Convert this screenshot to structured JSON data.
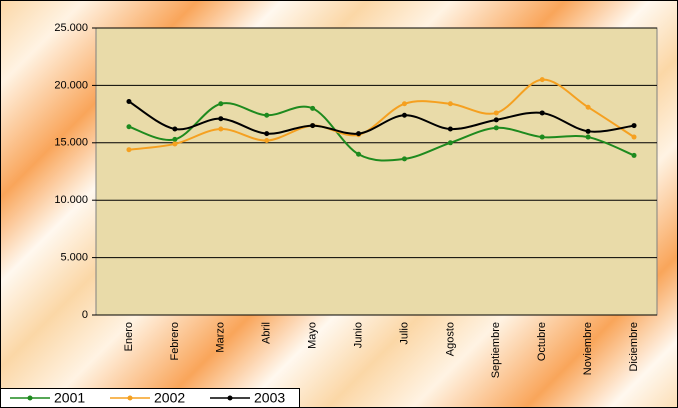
{
  "chart_data": {
    "type": "line",
    "categories": [
      "Enero",
      "Febrero",
      "Marzo",
      "Abril",
      "Mayo",
      "Junio",
      "Julio",
      "Agosto",
      "Septiembre",
      "Octubre",
      "Noviembre",
      "Diciembre"
    ],
    "series": [
      {
        "name": "2001",
        "color": "#1e8a1e",
        "values": [
          16400,
          15300,
          18400,
          17400,
          18000,
          14000,
          13600,
          15000,
          16300,
          15500,
          15500,
          13900
        ]
      },
      {
        "name": "2002",
        "color": "#f5a020",
        "values": [
          14400,
          14900,
          16200,
          15200,
          16500,
          15700,
          18400,
          18400,
          17600,
          20500,
          18100,
          15500
        ]
      },
      {
        "name": "2003",
        "color": "#000000",
        "values": [
          18600,
          16200,
          17100,
          15800,
          16500,
          15800,
          17400,
          16200,
          17000,
          17600,
          16000,
          16500
        ]
      }
    ],
    "ylim": [
      0,
      25000
    ],
    "yticks": [
      0,
      {
        "value": 5000,
        "label": "5.000"
      },
      {
        "value": 10000,
        "label": "10.000"
      },
      {
        "value": 15000,
        "label": "15.000"
      },
      {
        "value": 20000,
        "label": "20.000"
      },
      {
        "value": 25000,
        "label": "25.000"
      }
    ],
    "grid": true
  }
}
